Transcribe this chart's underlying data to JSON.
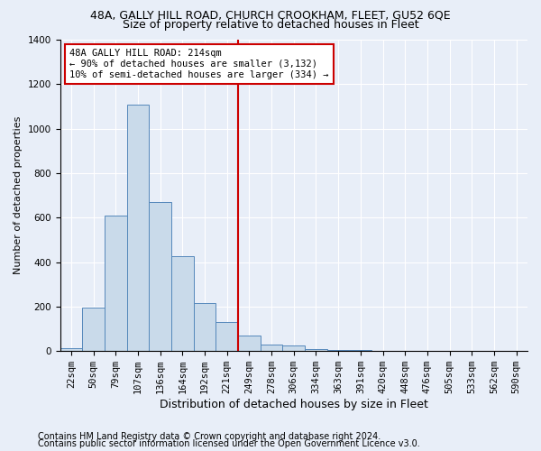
{
  "title1": "48A, GALLY HILL ROAD, CHURCH CROOKHAM, FLEET, GU52 6QE",
  "title2": "Size of property relative to detached houses in Fleet",
  "xlabel": "Distribution of detached houses by size in Fleet",
  "ylabel": "Number of detached properties",
  "footer1": "Contains HM Land Registry data © Crown copyright and database right 2024.",
  "footer2": "Contains public sector information licensed under the Open Government Licence v3.0.",
  "annotation_title": "48A GALLY HILL ROAD: 214sqm",
  "annotation_line1": "← 90% of detached houses are smaller (3,132)",
  "annotation_line2": "10% of semi-detached houses are larger (334) →",
  "bar_labels": [
    "22sqm",
    "50sqm",
    "79sqm",
    "107sqm",
    "136sqm",
    "164sqm",
    "192sqm",
    "221sqm",
    "249sqm",
    "278sqm",
    "306sqm",
    "334sqm",
    "363sqm",
    "391sqm",
    "420sqm",
    "448sqm",
    "476sqm",
    "505sqm",
    "533sqm",
    "562sqm",
    "590sqm"
  ],
  "bar_values": [
    15,
    195,
    610,
    1110,
    670,
    425,
    215,
    130,
    70,
    30,
    25,
    10,
    5,
    5,
    0,
    0,
    0,
    0,
    0,
    0,
    0
  ],
  "bar_width": 1.0,
  "bar_color": "#c9daea",
  "bar_edge_color": "#5588bb",
  "vline_x": 7.5,
  "vline_color": "#cc0000",
  "annotation_box_color": "#cc0000",
  "background_color": "#e8eef8",
  "plot_background": "#e8eef8",
  "ylim": [
    0,
    1400
  ],
  "yticks": [
    0,
    200,
    400,
    600,
    800,
    1000,
    1200,
    1400
  ],
  "grid_color": "#ffffff",
  "title1_fontsize": 9,
  "title2_fontsize": 9,
  "xlabel_fontsize": 9,
  "ylabel_fontsize": 8,
  "tick_fontsize": 7.5,
  "footer_fontsize": 7,
  "ann_fontsize": 7.5
}
